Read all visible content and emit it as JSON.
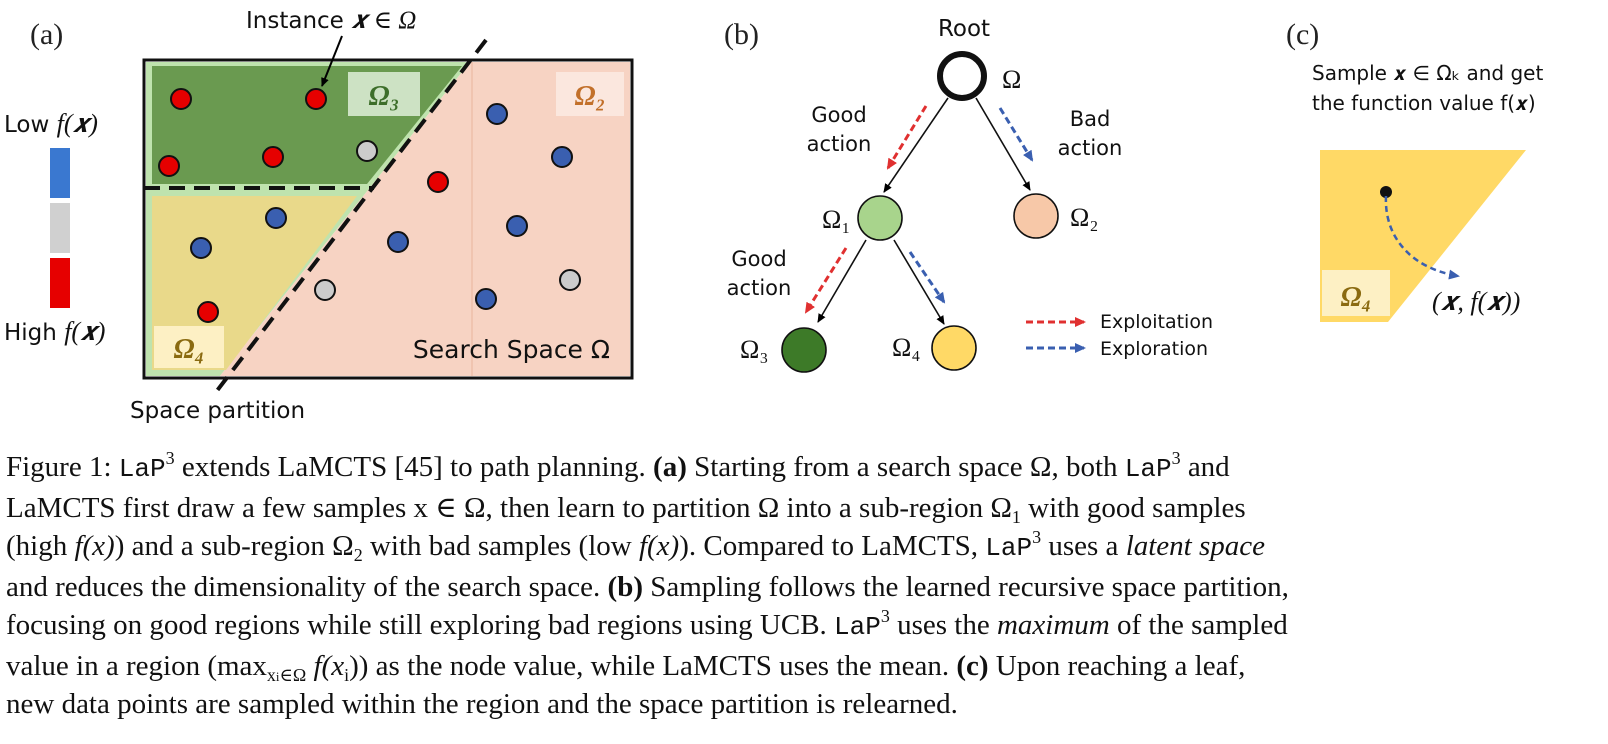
{
  "panel_a": {
    "label": "(a)",
    "instance_label": "Instance",
    "instance_math": "𝒙 ∈ Ω",
    "low_label": "Low",
    "high_label": "High",
    "fx": "f(𝒙)",
    "omega3": "Ω₃",
    "omega2": "Ω₂",
    "omega4": "Ω₄",
    "search_space": "Search Space Ω",
    "space_partition": "Space partition",
    "colors": {
      "good": "#e60000",
      "neutral": "#cccccc",
      "bad": "#3a5fb0",
      "omega3_fill": "#6a9a50",
      "omega4_fill": "#e9d98a",
      "omega2_fill": "#f7d3c3",
      "band": "#b8e0a8"
    }
  },
  "panel_b": {
    "label": "(b)",
    "root": "Root",
    "omega": "Ω",
    "good_action": [
      "Good",
      "action"
    ],
    "bad_action": [
      "Bad",
      "action"
    ],
    "good_action2": [
      "Good",
      "action"
    ],
    "n1": "Ω₁",
    "n2": "Ω₂",
    "n3": "Ω₃",
    "n4": "Ω₄",
    "legend_exploitation": "Exploitation",
    "legend_exploration": "Exploration",
    "colors": {
      "n1": "#a8d48c",
      "n2": "#f7c8a8",
      "n3": "#3d7a28",
      "n4": "#ffd966",
      "exploit": "#e03030",
      "explore": "#3a5fb0"
    }
  },
  "panel_c": {
    "label": "(c)",
    "line1": "Sample 𝒙 ∈ Ωₖ and get",
    "line2": "the function value f(𝒙)",
    "omega4": "Ω₄",
    "point": "(𝒙, f(𝒙))",
    "colors": {
      "fill": "#ffd966"
    }
  },
  "caption": {
    "l1_a": "Figure 1: ",
    "lap": "LaP",
    "l1_b": " extends LaMCTS [45] to path planning. ",
    "l1_c": "(a)",
    "l1_d": " Starting from a search space Ω, both ",
    "l1_e": " and",
    "l2_a": "LaMCTS first draw a few samples ",
    "l2_b": "x ∈ Ω",
    "l2_c": ", then learn to partition Ω into a sub-region Ω",
    "l2_d": " with good samples",
    "l3_a": "(high ",
    "l3_b": "f(x)",
    "l3_c": ") and a sub-region Ω",
    "l3_d": " with bad samples (low ",
    "l3_e": "f(x)",
    "l3_f": "). Compared to LaMCTS, ",
    "l3_g": " uses a ",
    "l3_h": "latent space",
    "l4_a": "and reduces the dimensionality of the search space. ",
    "l4_b": "(b)",
    "l4_c": " Sampling follows the learned recursive space partition,",
    "l5_a": "focusing on good regions while still exploring bad regions using UCB. ",
    "l5_b": " uses the ",
    "l5_c": "maximum",
    "l5_d": " of the sampled",
    "l6_a": "value in a region (max",
    "l6_sub": "x",
    "l6_sub2": "∈Ω",
    "l6_b": " f(x",
    "l6_c": ")) as the node value, while LaMCTS uses the mean. ",
    "l6_d": "(c)",
    "l6_e": " Upon reaching a leaf,",
    "l7": "new data points are sampled within the region and the space partition is relearned.",
    "sup3": "3",
    "sub1": "1",
    "sub2": "2",
    "subi": "i"
  }
}
